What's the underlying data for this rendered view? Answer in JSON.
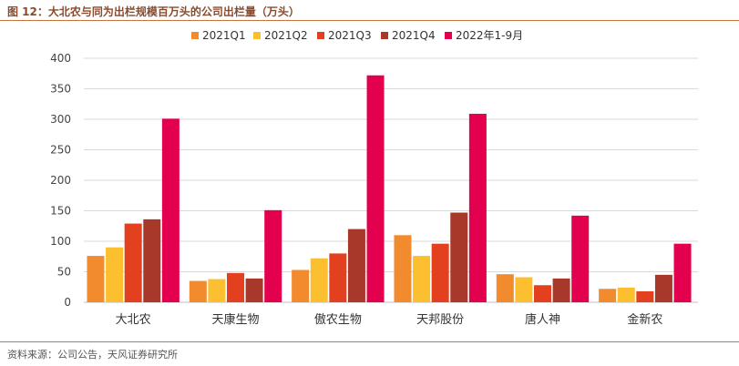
{
  "figure": {
    "title": "图 12：大北农与同为出栏规模百万头的公司出栏量（万头）",
    "source": "资料来源：公司公告，天风证券研究所"
  },
  "chart_data": {
    "type": "bar",
    "title": "",
    "xlabel": "",
    "ylabel": "",
    "ylim": [
      0,
      400
    ],
    "yticks": [
      0,
      50,
      100,
      150,
      200,
      250,
      300,
      350,
      400
    ],
    "grid": true,
    "legend_position": "top",
    "categories": [
      "大北农",
      "天康生物",
      "傲农生物",
      "天邦股份",
      "唐人神",
      "金新农"
    ],
    "series": [
      {
        "name": "2021Q1",
        "color": "#f28a2e",
        "values": [
          76,
          35,
          53,
          110,
          46,
          22
        ]
      },
      {
        "name": "2021Q2",
        "color": "#fbbf2f",
        "values": [
          90,
          38,
          72,
          76,
          41,
          24
        ]
      },
      {
        "name": "2021Q3",
        "color": "#e2401f",
        "values": [
          129,
          48,
          80,
          96,
          28,
          18
        ]
      },
      {
        "name": "2021Q4",
        "color": "#a8382a",
        "values": [
          136,
          39,
          120,
          147,
          39,
          45
        ]
      },
      {
        "name": "2022年1-9月",
        "color": "#e3004f",
        "values": [
          301,
          151,
          372,
          309,
          142,
          96
        ]
      }
    ]
  }
}
